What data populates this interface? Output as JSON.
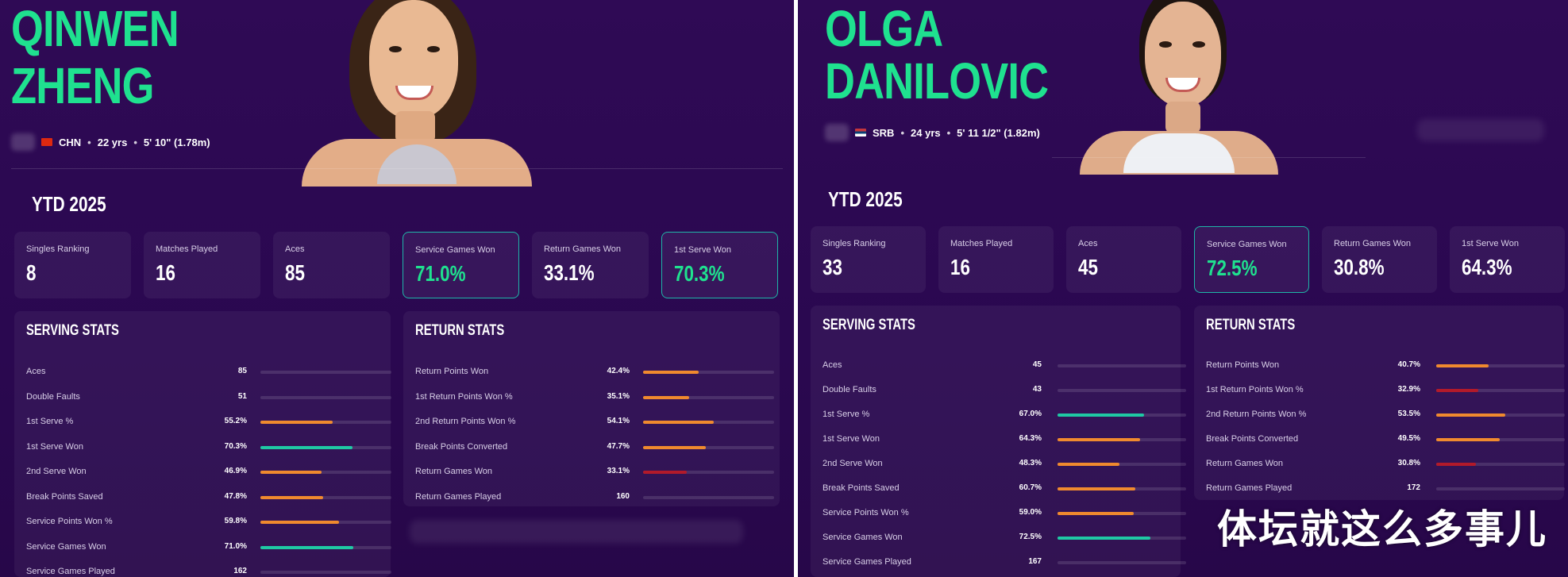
{
  "colors": {
    "accent_green": "#1fe18f",
    "teal_bar": "#1fc9a4",
    "orange_bar": "#f08a2e",
    "red_bar": "#b21a2a",
    "highlight_border": "#1fb6a8"
  },
  "players": [
    {
      "id": "left",
      "first_name": "QINWEN",
      "last_name": "ZHENG",
      "country": "CHN",
      "age": "22 yrs",
      "height": "5' 10\" (1.78m)",
      "section_heading": "YTD 2025",
      "cards": [
        {
          "label": "Singles Ranking",
          "value": "8",
          "highlight": false
        },
        {
          "label": "Matches Played",
          "value": "16",
          "highlight": false
        },
        {
          "label": "Aces",
          "value": "85",
          "highlight": false
        },
        {
          "label": "Service Games Won",
          "value": "71.0%",
          "highlight": true
        },
        {
          "label": "Return Games Won",
          "value": "33.1%",
          "highlight": false
        },
        {
          "label": "1st Serve Won",
          "value": "70.3%",
          "highlight": true
        }
      ],
      "serving_title": "SERVING STATS",
      "serving": [
        {
          "label": "Aces",
          "value": "85",
          "fill": 0,
          "color": "none"
        },
        {
          "label": "Double Faults",
          "value": "51",
          "fill": 0,
          "color": "none"
        },
        {
          "label": "1st Serve %",
          "value": "55.2%",
          "fill": 0.552,
          "color": "orange"
        },
        {
          "label": "1st Serve Won",
          "value": "70.3%",
          "fill": 0.703,
          "color": "teal"
        },
        {
          "label": "2nd Serve Won",
          "value": "46.9%",
          "fill": 0.469,
          "color": "orange"
        },
        {
          "label": "Break Points Saved",
          "value": "47.8%",
          "fill": 0.478,
          "color": "orange"
        },
        {
          "label": "Service Points Won %",
          "value": "59.8%",
          "fill": 0.598,
          "color": "orange"
        },
        {
          "label": "Service Games Won",
          "value": "71.0%",
          "fill": 0.71,
          "color": "teal"
        },
        {
          "label": "Service Games Played",
          "value": "162",
          "fill": 0,
          "color": "none"
        }
      ],
      "return_title": "RETURN STATS",
      "return": [
        {
          "label": "Return Points Won",
          "value": "42.4%",
          "fill": 0.424,
          "color": "orange"
        },
        {
          "label": "1st Return Points Won %",
          "value": "35.1%",
          "fill": 0.351,
          "color": "orange"
        },
        {
          "label": "2nd Return Points Won %",
          "value": "54.1%",
          "fill": 0.541,
          "color": "orange"
        },
        {
          "label": "Break Points Converted",
          "value": "47.7%",
          "fill": 0.477,
          "color": "orange"
        },
        {
          "label": "Return Games Won",
          "value": "33.1%",
          "fill": 0.331,
          "color": "red"
        },
        {
          "label": "Return Games Played",
          "value": "160",
          "fill": 0,
          "color": "none"
        }
      ]
    },
    {
      "id": "right",
      "first_name": "OLGA",
      "last_name": "DANILOVIC",
      "country": "SRB",
      "age": "24 yrs",
      "height": "5' 11 1/2\" (1.82m)",
      "section_heading": "YTD 2025",
      "cards": [
        {
          "label": "Singles Ranking",
          "value": "33",
          "highlight": false
        },
        {
          "label": "Matches Played",
          "value": "16",
          "highlight": false
        },
        {
          "label": "Aces",
          "value": "45",
          "highlight": false
        },
        {
          "label": "Service Games Won",
          "value": "72.5%",
          "highlight": true
        },
        {
          "label": "Return Games Won",
          "value": "30.8%",
          "highlight": false
        },
        {
          "label": "1st Serve Won",
          "value": "64.3%",
          "highlight": false
        }
      ],
      "serving_title": "SERVING STATS",
      "serving": [
        {
          "label": "Aces",
          "value": "45",
          "fill": 0,
          "color": "none"
        },
        {
          "label": "Double Faults",
          "value": "43",
          "fill": 0,
          "color": "none"
        },
        {
          "label": "1st Serve %",
          "value": "67.0%",
          "fill": 0.67,
          "color": "teal"
        },
        {
          "label": "1st Serve Won",
          "value": "64.3%",
          "fill": 0.643,
          "color": "orange"
        },
        {
          "label": "2nd Serve Won",
          "value": "48.3%",
          "fill": 0.483,
          "color": "orange"
        },
        {
          "label": "Break Points Saved",
          "value": "60.7%",
          "fill": 0.607,
          "color": "orange"
        },
        {
          "label": "Service Points Won %",
          "value": "59.0%",
          "fill": 0.59,
          "color": "orange"
        },
        {
          "label": "Service Games Won",
          "value": "72.5%",
          "fill": 0.725,
          "color": "teal"
        },
        {
          "label": "Service Games Played",
          "value": "167",
          "fill": 0,
          "color": "none"
        }
      ],
      "return_title": "RETURN STATS",
      "return": [
        {
          "label": "Return Points Won",
          "value": "40.7%",
          "fill": 0.407,
          "color": "orange"
        },
        {
          "label": "1st Return Points Won %",
          "value": "32.9%",
          "fill": 0.329,
          "color": "red"
        },
        {
          "label": "2nd Return Points Won %",
          "value": "53.5%",
          "fill": 0.535,
          "color": "orange"
        },
        {
          "label": "Break Points Converted",
          "value": "49.5%",
          "fill": 0.495,
          "color": "orange"
        },
        {
          "label": "Return Games Won",
          "value": "30.8%",
          "fill": 0.308,
          "color": "red"
        },
        {
          "label": "Return Games Played",
          "value": "172",
          "fill": 0,
          "color": "none"
        }
      ]
    }
  ],
  "watermark": "体坛就这么多事儿"
}
